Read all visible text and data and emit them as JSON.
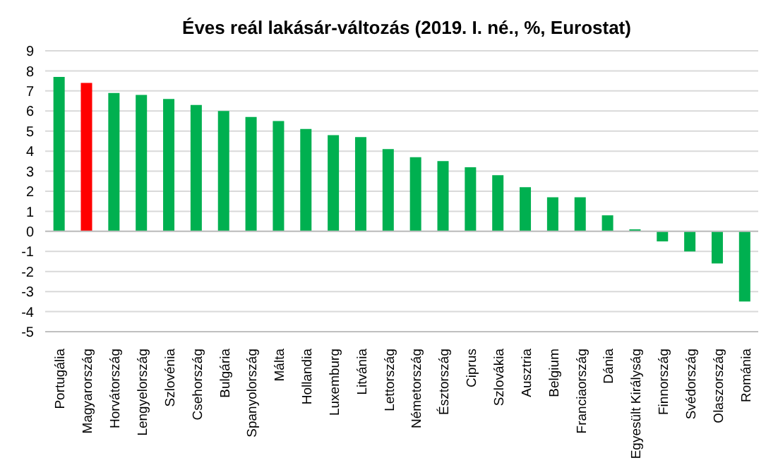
{
  "chart_data": {
    "type": "bar",
    "title": "Éves reál lakásár-változás (2019. I. né., %, Eurostat)",
    "categories": [
      "Portugália",
      "Magyarország",
      "Horvátország",
      "Lengyelország",
      "Szlovénia",
      "Csehország",
      "Bulgária",
      "Spanyolország",
      "Málta",
      "Hollandia",
      "Luxemburg",
      "Litvánia",
      "Lettország",
      "Németország",
      "Észtország",
      "Ciprus",
      "Szlovákia",
      "Ausztria",
      "Belgium",
      "Franciaország",
      "Dánia",
      "Egyesült Királyság",
      "Finnország",
      "Svédország",
      "Olaszország",
      "Románia"
    ],
    "values": [
      7.7,
      7.4,
      6.9,
      6.8,
      6.6,
      6.3,
      6.0,
      5.7,
      5.5,
      5.1,
      4.8,
      4.7,
      4.1,
      3.7,
      3.5,
      3.2,
      2.8,
      2.2,
      1.7,
      1.7,
      0.8,
      0.1,
      -0.5,
      -1.0,
      -1.6,
      -3.5
    ],
    "colors": [
      "#00b050",
      "#ff0000",
      "#00b050",
      "#00b050",
      "#00b050",
      "#00b050",
      "#00b050",
      "#00b050",
      "#00b050",
      "#00b050",
      "#00b050",
      "#00b050",
      "#00b050",
      "#00b050",
      "#00b050",
      "#00b050",
      "#00b050",
      "#00b050",
      "#00b050",
      "#00b050",
      "#00b050",
      "#00b050",
      "#00b050",
      "#00b050",
      "#00b050",
      "#00b050"
    ],
    "ylim": [
      -5,
      9
    ],
    "yticks": [
      -5,
      -4,
      -3,
      -2,
      -1,
      0,
      1,
      2,
      3,
      4,
      5,
      6,
      7,
      8,
      9
    ],
    "grid": "y"
  }
}
